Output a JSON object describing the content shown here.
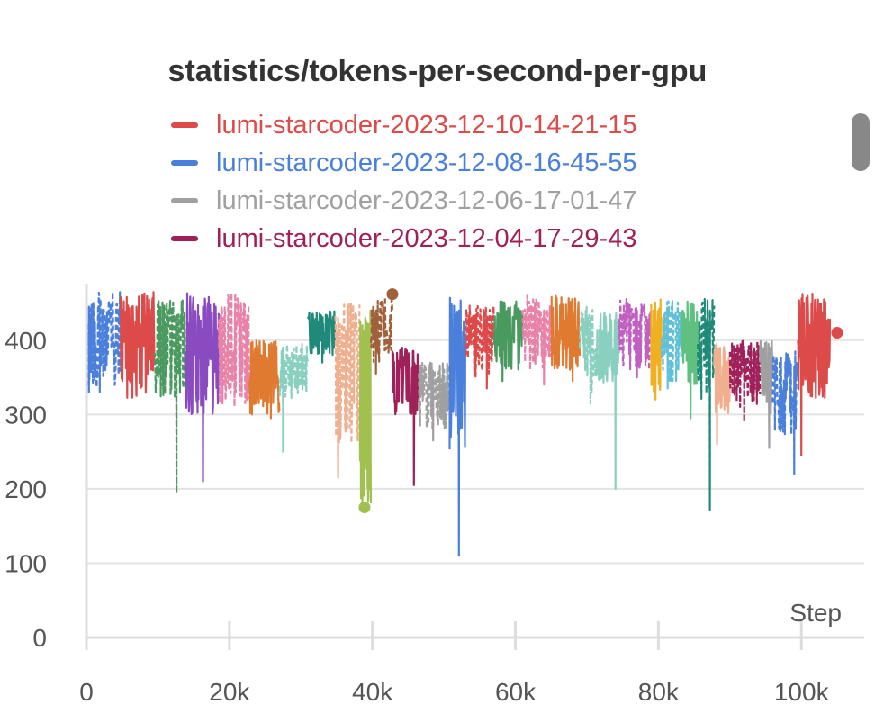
{
  "title": "statistics/tokens-per-second-per-gpu",
  "legend": [
    {
      "label": "lumi-starcoder-2023-12-10-14-21-15",
      "color": "#dc4a4a"
    },
    {
      "label": "lumi-starcoder-2023-12-08-16-45-55",
      "color": "#4a80dc"
    },
    {
      "label": "lumi-starcoder-2023-12-06-17-01-47",
      "color": "#a0a0a0"
    },
    {
      "label": "lumi-starcoder-2023-12-04-17-29-43",
      "color": "#a0205a"
    }
  ],
  "chart_data": {
    "type": "line",
    "title": "statistics/tokens-per-second-per-gpu",
    "xlabel": "Step",
    "ylabel": "",
    "xlim": [
      0,
      104000
    ],
    "ylim": [
      0,
      470
    ],
    "x_ticks": [
      0,
      20000,
      40000,
      60000,
      80000,
      100000
    ],
    "x_tick_labels": [
      "0",
      "20k",
      "40k",
      "60k",
      "80k",
      "100k"
    ],
    "y_ticks": [
      0,
      100,
      200,
      300,
      400
    ],
    "y_tick_labels": [
      "0",
      "100",
      "200",
      "300",
      "400"
    ],
    "grid": true,
    "legend_position": "top",
    "series": [
      {
        "x0": 0,
        "x1": 4800,
        "color": "#4a80dc",
        "lo": 330,
        "hi": 465,
        "dip": [
          350,
          330
        ]
      },
      {
        "x0": 4800,
        "x1": 9500,
        "color": "#dc4a4a",
        "lo": 320,
        "hi": 465,
        "dip": [
          7000,
          325
        ]
      },
      {
        "x0": 9500,
        "x1": 13800,
        "color": "#4a9a60",
        "lo": 320,
        "hi": 455,
        "dip": [
          12600,
          195
        ]
      },
      {
        "x0": 13800,
        "x1": 18500,
        "color": "#8a4ac0",
        "lo": 300,
        "hi": 465,
        "dip": [
          16300,
          210
        ]
      },
      {
        "x0": 18500,
        "x1": 22800,
        "color": "#e882a8",
        "lo": 310,
        "hi": 465,
        "dip": [
          20800,
          330
        ]
      },
      {
        "x0": 22800,
        "x1": 27000,
        "color": "#e07a30",
        "lo": 300,
        "hi": 400,
        "dip": [
          25800,
          295
        ]
      },
      {
        "x0": 27000,
        "x1": 31000,
        "color": "#8ad0c0",
        "lo": 320,
        "hi": 395,
        "dip": [
          27500,
          250
        ]
      },
      {
        "x0": 31000,
        "x1": 34800,
        "color": "#1f8a7a",
        "lo": 380,
        "hi": 440,
        "dip": [
          33000,
          370
        ]
      },
      {
        "x0": 34800,
        "x1": 38200,
        "color": "#f0b090",
        "lo": 260,
        "hi": 450,
        "dip": [
          35200,
          215
        ]
      },
      {
        "x0": 38200,
        "x1": 39800,
        "color": "#a0c050",
        "lo": 175,
        "hi": 440,
        "dip": [
          38600,
          175
        ]
      },
      {
        "x0": 39800,
        "x1": 42800,
        "color": "#a0603a",
        "lo": 370,
        "hi": 460,
        "dip": [
          40500,
          355
        ]
      },
      {
        "x0": 42800,
        "x1": 46500,
        "color": "#a0205a",
        "lo": 300,
        "hi": 390,
        "dip": [
          45800,
          205
        ]
      },
      {
        "x0": 46500,
        "x1": 50800,
        "color": "#a0a0a0",
        "lo": 280,
        "hi": 370,
        "dip": [
          48500,
          265
        ]
      },
      {
        "x0": 50800,
        "x1": 53000,
        "color": "#4a80dc",
        "lo": 250,
        "hi": 460,
        "dip": [
          52100,
          110
        ]
      },
      {
        "x0": 53000,
        "x1": 57000,
        "color": "#dc4a4a",
        "lo": 350,
        "hi": 450,
        "dip": [
          56000,
          335
        ]
      },
      {
        "x0": 57000,
        "x1": 61000,
        "color": "#4a9a60",
        "lo": 360,
        "hi": 455,
        "dip": [
          58200,
          345
        ]
      },
      {
        "x0": 61000,
        "x1": 65000,
        "color": "#e882a8",
        "lo": 360,
        "hi": 460,
        "dip": [
          64000,
          340
        ]
      },
      {
        "x0": 65000,
        "x1": 69000,
        "color": "#e07a30",
        "lo": 360,
        "hi": 460,
        "dip": [
          68000,
          345
        ]
      },
      {
        "x0": 69000,
        "x1": 71500,
        "color": "#8ad0c0",
        "lo": 330,
        "hi": 450,
        "dip": [
          70500,
          315
        ]
      },
      {
        "x0": 71500,
        "x1": 74500,
        "color": "#8ad0c0",
        "lo": 340,
        "hi": 440,
        "dip": [
          74000,
          200
        ]
      },
      {
        "x0": 74500,
        "x1": 79000,
        "color": "#c060c0",
        "lo": 360,
        "hi": 460,
        "dip": [
          77000,
          350
        ]
      },
      {
        "x0": 79000,
        "x1": 80400,
        "color": "#f0b020",
        "lo": 330,
        "hi": 460,
        "dip": [
          79600,
          320
        ]
      },
      {
        "x0": 80400,
        "x1": 83200,
        "color": "#60c0d8",
        "lo": 345,
        "hi": 455,
        "dip": [
          81300,
          335
        ]
      },
      {
        "x0": 83200,
        "x1": 85500,
        "color": "#60c080",
        "lo": 340,
        "hi": 455,
        "dip": [
          84500,
          295
        ]
      },
      {
        "x0": 85500,
        "x1": 87800,
        "color": "#1f8a7a",
        "lo": 320,
        "hi": 460,
        "dip": [
          87200,
          172
        ]
      },
      {
        "x0": 87800,
        "x1": 90000,
        "color": "#f0b090",
        "lo": 300,
        "hi": 395,
        "dip": [
          88200,
          260
        ]
      },
      {
        "x0": 90000,
        "x1": 94200,
        "color": "#a0205a",
        "lo": 310,
        "hi": 400,
        "dip": [
          92000,
          290
        ]
      },
      {
        "x0": 94200,
        "x1": 96000,
        "color": "#a0a0a0",
        "lo": 300,
        "hi": 400,
        "dip": [
          95500,
          255
        ]
      },
      {
        "x0": 96000,
        "x1": 99500,
        "color": "#4a80dc",
        "lo": 270,
        "hi": 385,
        "dip": [
          99000,
          220
        ]
      },
      {
        "x0": 99500,
        "x1": 104000,
        "color": "#dc4a4a",
        "lo": 320,
        "hi": 465,
        "dip": [
          100000,
          245
        ]
      }
    ],
    "markers": [
      {
        "x": 38900,
        "y": 175,
        "color": "#a0c050"
      },
      {
        "x": 42800,
        "y": 462,
        "color": "#a0603a"
      },
      {
        "x": 105000,
        "y": 410,
        "color": "#dc4a4a"
      }
    ]
  }
}
